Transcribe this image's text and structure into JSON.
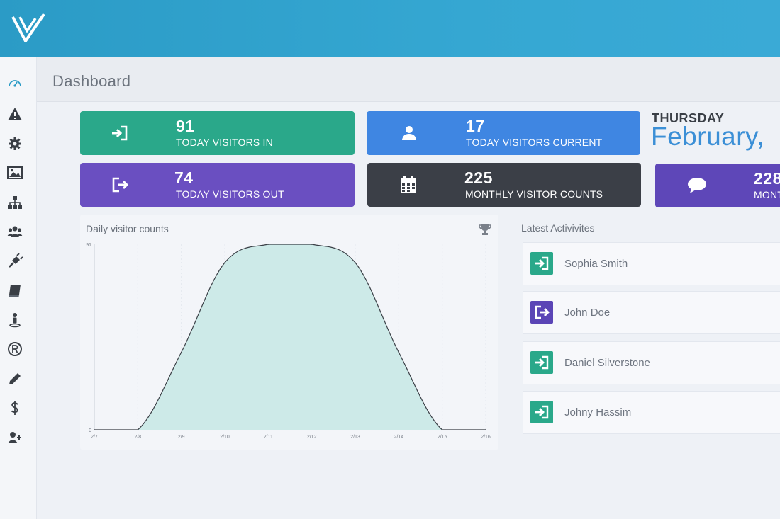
{
  "header": {
    "page_title": "Dashboard"
  },
  "sidebar": {
    "items": [
      {
        "icon": "dashboard-gauge-icon"
      },
      {
        "icon": "warning-icon"
      },
      {
        "icon": "gear-icon"
      },
      {
        "icon": "image-icon"
      },
      {
        "icon": "sitemap-icon"
      },
      {
        "icon": "users-icon"
      },
      {
        "icon": "plug-icon"
      },
      {
        "icon": "book-icon"
      },
      {
        "icon": "person-pin-icon"
      },
      {
        "icon": "registered-icon"
      },
      {
        "icon": "pencil-icon"
      },
      {
        "icon": "dollar-icon"
      },
      {
        "icon": "add-user-icon"
      }
    ]
  },
  "stats": {
    "visitors_in": {
      "value": "91",
      "label": "TODAY VISITORS IN",
      "color": "#2aa88a"
    },
    "visitors_current": {
      "value": "17",
      "label": "TODAY VISITORS CURRENT",
      "color": "#3f86e2"
    },
    "visitors_out": {
      "value": "74",
      "label": "TODAY VISITORS OUT",
      "color": "#6a4fc1"
    },
    "monthly_visitors": {
      "value": "225",
      "label": "MONTHLY VISITOR COUNTS",
      "color": "#3b3f47"
    },
    "monthly_messages": {
      "value": "228",
      "label": "MONT",
      "color": "#5e47b8"
    }
  },
  "date": {
    "day": "THURSDAY",
    "month": "February, "
  },
  "chart_title": "Daily visitor counts",
  "chart_data": {
    "type": "area",
    "title": "Daily visitor counts",
    "categories": [
      "2/7",
      "2/8",
      "2/9",
      "2/10",
      "2/11",
      "2/12",
      "2/13",
      "2/14",
      "2/15",
      "2/16"
    ],
    "y_ticks": [
      "0",
      "91"
    ],
    "series": [
      {
        "values": [
          0,
          0,
          38,
          82,
          91,
          91,
          82,
          38,
          0,
          0
        ]
      }
    ],
    "ylim": [
      0,
      91
    ],
    "fill_color": "#cdeae8",
    "line_color": "#3a3f46",
    "grid": true
  },
  "activities": {
    "title": "Latest Activivites",
    "items": [
      {
        "name": "Sophia Smith",
        "type": "in",
        "color": "#2aa88a"
      },
      {
        "name": "John Doe",
        "type": "out",
        "color": "#5b45b6"
      },
      {
        "name": "Daniel Silverstone",
        "type": "in",
        "color": "#2aa88a"
      },
      {
        "name": "Johny Hassim",
        "type": "in",
        "color": "#2aa88a"
      }
    ]
  }
}
